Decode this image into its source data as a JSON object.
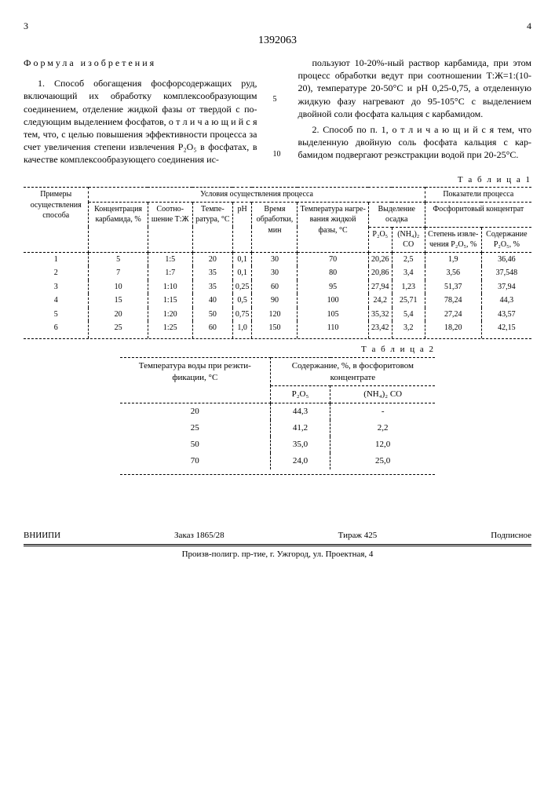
{
  "page_left": "3",
  "page_right": "4",
  "doc_number": "1392063",
  "formula_title": "Формула изобретения",
  "line_numbers": {
    "five": "5",
    "ten": "10"
  },
  "claims": {
    "p1_left": "1. Способ обогащения фосфорсодер­жащих руд, включающий их обработку комплексообразующим соединением, от­деление жидкой фазы от твердой с по­следующим выделением фосфатов, о т ­л и ч а ю щ и й с я  тем, что, с целью повышения эффективности процес­са за счет увеличения степени извле­чения P₂O₅ в фосфатах, в качестве комплексообразующего соединения ис-",
    "p1_right": "пользуют 10-20%-ный раствор карбами­да, при этом процесс обработки ведут при соотношении Т:Ж=1:(10-20), темпе­ратуре 20-50°С и pH 0,25-0,75, а от­деленную жидкую фазу нагревают до 95-105°С с выделением двойной соли фосфата кальция с карбамидом.",
    "p2_right": "2. Способ по п. 1, о т л и ч а ­ю щ и й с я  тем, что выделенную двойную соль фосфата кальция с кар­бамидом подвергают реэкстракции водой при 20-25°С."
  },
  "table1": {
    "label": "Т а б л и ц а 1",
    "group_headers": {
      "g1": "Примеры осущест­вления способа",
      "g2": "Условия осуществления процесса",
      "g3": "Показатели процесса"
    },
    "sub_headers": {
      "c1": "Концент­рация карба­мида, %",
      "c2": "Соотно­шение Т:Ж",
      "c3": "Темпе­ратура, °С",
      "c4": "pH",
      "c5": "Время обра­ботки, мин",
      "c6": "Темпе­ратура нагре­вания жидкой фазы, °С",
      "g_osadok": "Выделение осадка",
      "c7": "P₂O₅",
      "c8": "(NH₄)₂ CO",
      "g_konc": "Фосфоритовый концентрат",
      "c9": "Степень извле­чения P₂O₅, %",
      "c10": "Содержа­ние P₂O₅, %"
    },
    "rows": [
      [
        "1",
        "5",
        "1:5",
        "20",
        "0,1",
        "30",
        "70",
        "20,26",
        "2,5",
        "1,9",
        "36,46"
      ],
      [
        "2",
        "7",
        "1:7",
        "35",
        "0,1",
        "30",
        "80",
        "20,86",
        "3,4",
        "3,56",
        "37,548"
      ],
      [
        "3",
        "10",
        "1:10",
        "35",
        "0,25",
        "60",
        "95",
        "27,94",
        "1,23",
        "51,37",
        "37,94"
      ],
      [
        "4",
        "15",
        "1:15",
        "40",
        "0,5",
        "90",
        "100",
        "24,2",
        "25,71",
        "78,24",
        "44,3"
      ],
      [
        "5",
        "20",
        "1:20",
        "50",
        "0,75",
        "120",
        "105",
        "35,32",
        "5,4",
        "27,24",
        "43,57"
      ],
      [
        "6",
        "25",
        "1:25",
        "60",
        "1,0",
        "150",
        "110",
        "23,42",
        "3,2",
        "18,20",
        "42,15"
      ]
    ]
  },
  "table2": {
    "label": "Т а б л и ц а 2",
    "headers": {
      "h1": "Темпера­тура во­ды при реэкти­фикации, °С",
      "h2": "Содержание, %, в фосфори­товом концентрате",
      "h2a": "P₂O₅",
      "h2b": "(NH₄)₂ CO"
    },
    "rows": [
      [
        "20",
        "44,3",
        "-"
      ],
      [
        "25",
        "41,2",
        "2,2"
      ],
      [
        "50",
        "35,0",
        "12,0"
      ],
      [
        "70",
        "24,0",
        "25,0"
      ]
    ]
  },
  "footer": {
    "org": "ВНИИПИ",
    "order": "Заказ 1865/28",
    "tirage": "Тираж 425",
    "sub": "Подписное",
    "addr": "Произв-полигр. пр-тие, г. Ужгород, ул. Проектная, 4"
  }
}
